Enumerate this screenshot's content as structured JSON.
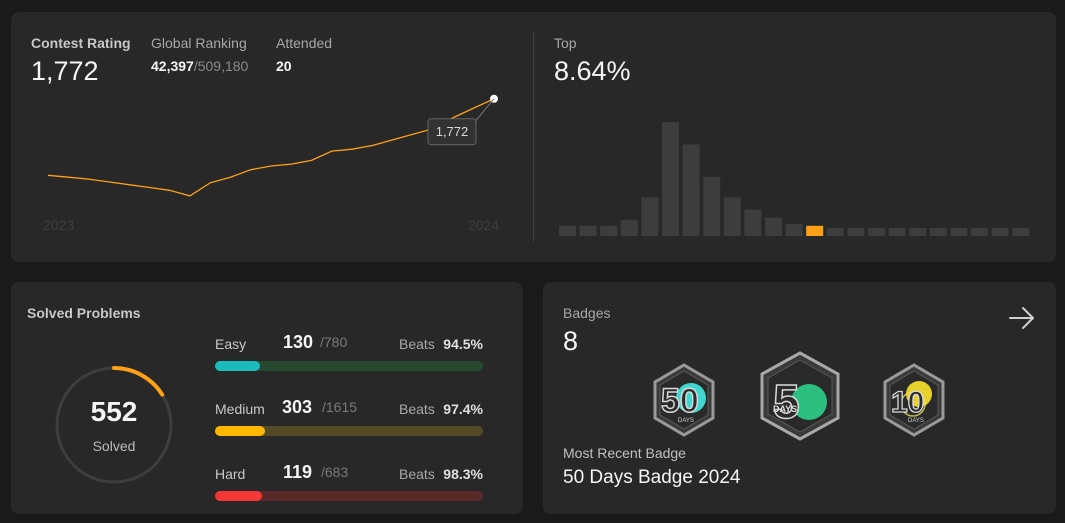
{
  "contest": {
    "rating_label": "Contest Rating",
    "rating_value": "1,772",
    "global_ranking_label": "Global Ranking",
    "global_ranking_value": "42,397",
    "global_ranking_total": "/509,180",
    "attended_label": "Attended",
    "attended_value": "20",
    "top_label": "Top",
    "top_value": "8.64%",
    "tooltip": "1,772",
    "year_start": "2023",
    "year_end": "2024",
    "line_color": "#ffa116"
  },
  "chart_data": [
    {
      "type": "line",
      "title": "Contest Rating",
      "x_labels": [
        "2023",
        "2024"
      ],
      "values": [
        1690,
        1688,
        1686,
        1683,
        1680,
        1677,
        1674,
        1668,
        1682,
        1688,
        1696,
        1700,
        1702,
        1706,
        1716,
        1718,
        1722,
        1728,
        1734,
        1740,
        1752,
        1762,
        1772
      ],
      "highlight": {
        "label": "1,772",
        "value": 1772
      },
      "ylim": [
        1640,
        1790
      ]
    },
    {
      "type": "bar",
      "title": "Top 8.64%",
      "values": [
        5,
        5,
        5,
        8,
        19,
        56,
        45,
        29,
        19,
        13,
        9,
        6,
        5,
        4,
        4,
        4,
        4,
        4,
        4,
        4,
        4,
        4,
        4,
        4
      ],
      "highlight_index": 12,
      "bar_color": "#3d3d3d",
      "highlight_color": "#ffa116",
      "ylim": [
        0,
        58
      ]
    }
  ],
  "solved": {
    "title": "Solved Problems",
    "total": "552",
    "total_label": "Solved",
    "ring_fraction": 0.16,
    "ring_color": "#ffa116",
    "rows": [
      {
        "name": "Easy",
        "count": "130",
        "total": "/780",
        "beats_label": "Beats",
        "beats": "94.5%",
        "fraction": 0.167,
        "fill": "#1cbaba",
        "track": "#274a2e"
      },
      {
        "name": "Medium",
        "count": "303",
        "total": "/1615",
        "beats_label": "Beats",
        "beats": "97.4%",
        "fraction": 0.188,
        "fill": "#ffb700",
        "track": "#544a26"
      },
      {
        "name": "Hard",
        "count": "119",
        "total": "/683",
        "beats_label": "Beats",
        "beats": "98.3%",
        "fraction": 0.174,
        "fill": "#f63737",
        "track": "#5a2a2a"
      }
    ]
  },
  "badges": {
    "title": "Badges",
    "count": "8",
    "recent_label": "Most Recent Badge",
    "recent_name": "50 Days Badge 2024",
    "arrow_icon": "arrow-right-icon",
    "items": [
      {
        "name": "50-days-badge-teal",
        "digit": "50",
        "sub": "DAYS",
        "color": "#3fd8d0"
      },
      {
        "name": "50-days-badge-green",
        "digit": "5",
        "sub": "DAYS",
        "color": "#2cc080"
      },
      {
        "name": "100-days-badge-yellow",
        "digit": "10",
        "sub": "DAYS",
        "color": "#e6d12a"
      }
    ]
  }
}
